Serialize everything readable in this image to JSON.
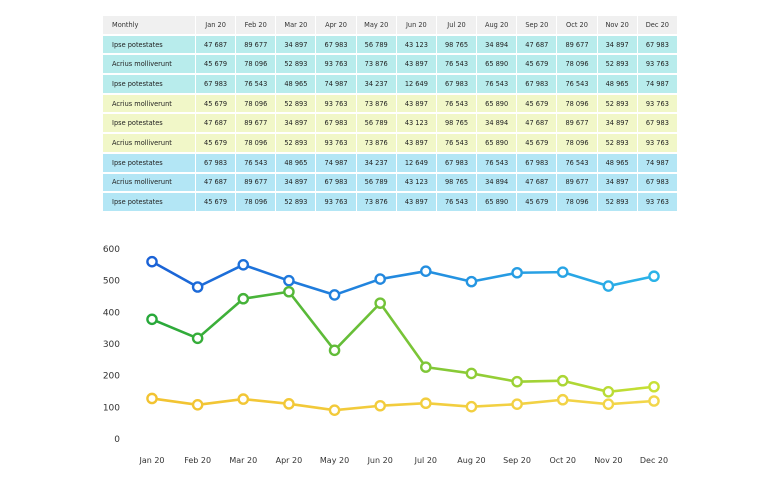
{
  "table": {
    "header": [
      "Monthly",
      "Jan 20",
      "Feb 20",
      "Mar 20",
      "Apr 20",
      "May 20",
      "Jun 20",
      "Jul 20",
      "Aug 20",
      "Sep 20",
      "Oct 20",
      "Nov 20",
      "Dec 20"
    ],
    "rows": [
      {
        "group": "cyan",
        "cells": [
          "Ipse potestates",
          "47 687",
          "89 677",
          "34 897",
          "67 983",
          "56 789",
          "43 123",
          "98 765",
          "34 894",
          "47 687",
          "89 677",
          "34 897",
          "67 983"
        ]
      },
      {
        "group": "cyan",
        "cells": [
          "Acrius molliverunt",
          "45 679",
          "78 096",
          "52 893",
          "93 763",
          "73 876",
          "43 897",
          "76 543",
          "65 890",
          "45 679",
          "78 096",
          "52 893",
          "93 763"
        ]
      },
      {
        "group": "cyan",
        "cells": [
          "Ipse potestates",
          "67 983",
          "76 543",
          "48 965",
          "74 987",
          "34 237",
          "12 649",
          "67 983",
          "76 543",
          "67 983",
          "76 543",
          "48 965",
          "74 987"
        ]
      },
      {
        "group": "yellow",
        "cells": [
          "Acrius molliverunt",
          "45 679",
          "78 096",
          "52 893",
          "93 763",
          "73 876",
          "43 897",
          "76 543",
          "65 890",
          "45 679",
          "78 096",
          "52 893",
          "93 763"
        ]
      },
      {
        "group": "yellow",
        "cells": [
          "Ipse potestates",
          "47 687",
          "89 677",
          "34 897",
          "67 983",
          "56 789",
          "43 123",
          "98 765",
          "34 894",
          "47 687",
          "89 677",
          "34 897",
          "67 983"
        ]
      },
      {
        "group": "yellow",
        "cells": [
          "Acrius molliverunt",
          "45 679",
          "78 096",
          "52 893",
          "93 763",
          "73 876",
          "43 897",
          "76 543",
          "65 890",
          "45 679",
          "78 096",
          "52 893",
          "93 763"
        ]
      },
      {
        "group": "blue",
        "cells": [
          "Ipse potestates",
          "67 983",
          "76 543",
          "48 965",
          "74 987",
          "34 237",
          "12 649",
          "67 983",
          "76 543",
          "67 983",
          "76 543",
          "48 965",
          "74 987"
        ]
      },
      {
        "group": "blue",
        "cells": [
          "Acrius molliverunt",
          "47 687",
          "89 677",
          "34 897",
          "67 983",
          "56 789",
          "43 123",
          "98 765",
          "34 894",
          "47 687",
          "89 677",
          "34 897",
          "67 983"
        ]
      },
      {
        "group": "blue",
        "cells": [
          "Ipse potestates",
          "45 679",
          "78 096",
          "52 893",
          "93 763",
          "73 876",
          "43 897",
          "76 543",
          "65 890",
          "45 679",
          "78 096",
          "52 893",
          "93 763"
        ]
      }
    ]
  },
  "chart_data": {
    "type": "line",
    "categories": [
      "Jan 20",
      "Feb 20",
      "Mar 20",
      "Apr 20",
      "May 20",
      "Jun 20",
      "Jul 20",
      "Aug 20",
      "Sep 20",
      "Oct 20",
      "Nov 20",
      "Dec 20"
    ],
    "ylim": [
      0,
      600
    ],
    "yticks": [
      0,
      100,
      200,
      300,
      400,
      500,
      600
    ],
    "grid": false,
    "series": [
      {
        "values": [
          560,
          480,
          550,
          500,
          455,
          505,
          530,
          497,
          525,
          527,
          483,
          514
        ],
        "color_start": "#1a62d6",
        "color_end": "#2bb3e8"
      },
      {
        "values": [
          378,
          318,
          443,
          465,
          280,
          429,
          227,
          207,
          181,
          184,
          149,
          165
        ],
        "color_start": "#27a83a",
        "color_end": "#c8e034"
      },
      {
        "values": [
          128,
          108,
          126,
          111,
          91,
          105,
          113,
          102,
          110,
          124,
          110,
          120
        ],
        "color_start": "#f2c331",
        "color_end": "#f2d64a"
      }
    ]
  }
}
